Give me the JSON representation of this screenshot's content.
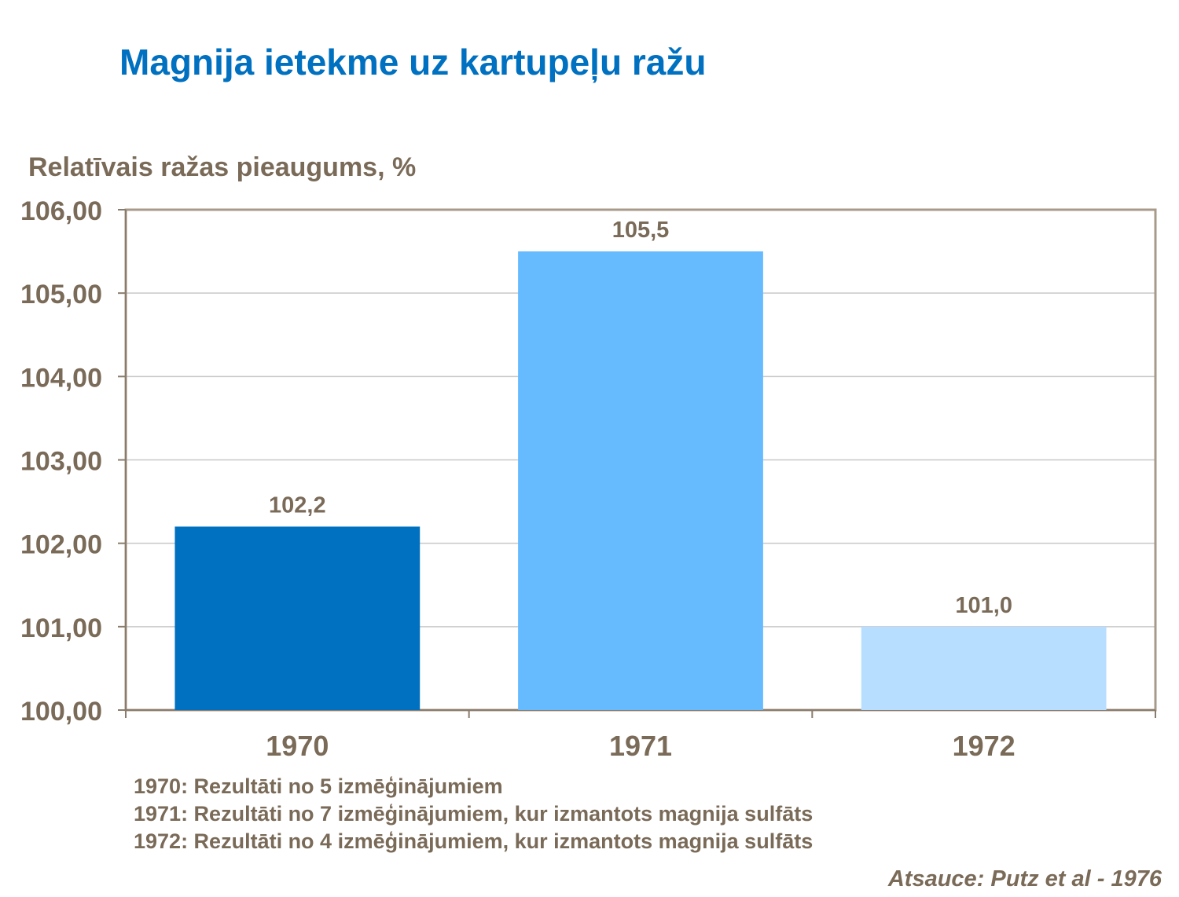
{
  "chart_data": {
    "type": "bar",
    "title": "Magnija ietekme uz kartupeļu ražu",
    "ylabel": "Relatīvais ražas pieaugums, %",
    "xlabel": "",
    "categories": [
      "1970",
      "1971",
      "1972"
    ],
    "values": [
      102.2,
      105.5,
      101.0
    ],
    "value_labels": [
      "102,2",
      "105,5",
      "101,0"
    ],
    "ylim": [
      100,
      106
    ],
    "yticks": [
      100,
      101,
      102,
      103,
      104,
      105,
      106
    ],
    "ytick_labels": [
      "100,00",
      "101,00",
      "102,00",
      "103,00",
      "104,00",
      "105,00",
      "106,00"
    ],
    "bar_colors": [
      "#0070C0",
      "#66BBFF",
      "#B8DEFF"
    ],
    "grid": true,
    "legend": "none"
  },
  "notes": [
    "1970: Rezultāti no 5 izmēģinājumiem",
    "1971: Rezultāti no 7 izmēģinājumiem, kur izmantots magnija sulfāts",
    "1972: Rezultāti no 4 izmēģinājumiem, kur izmantots magnija sulfāts"
  ],
  "source": "Atsauce: Putz et al - 1976",
  "colors": {
    "title": "#0070C0",
    "text": "#7A6A58",
    "axis": "#A89A88",
    "grid": "#C8C8C8"
  }
}
